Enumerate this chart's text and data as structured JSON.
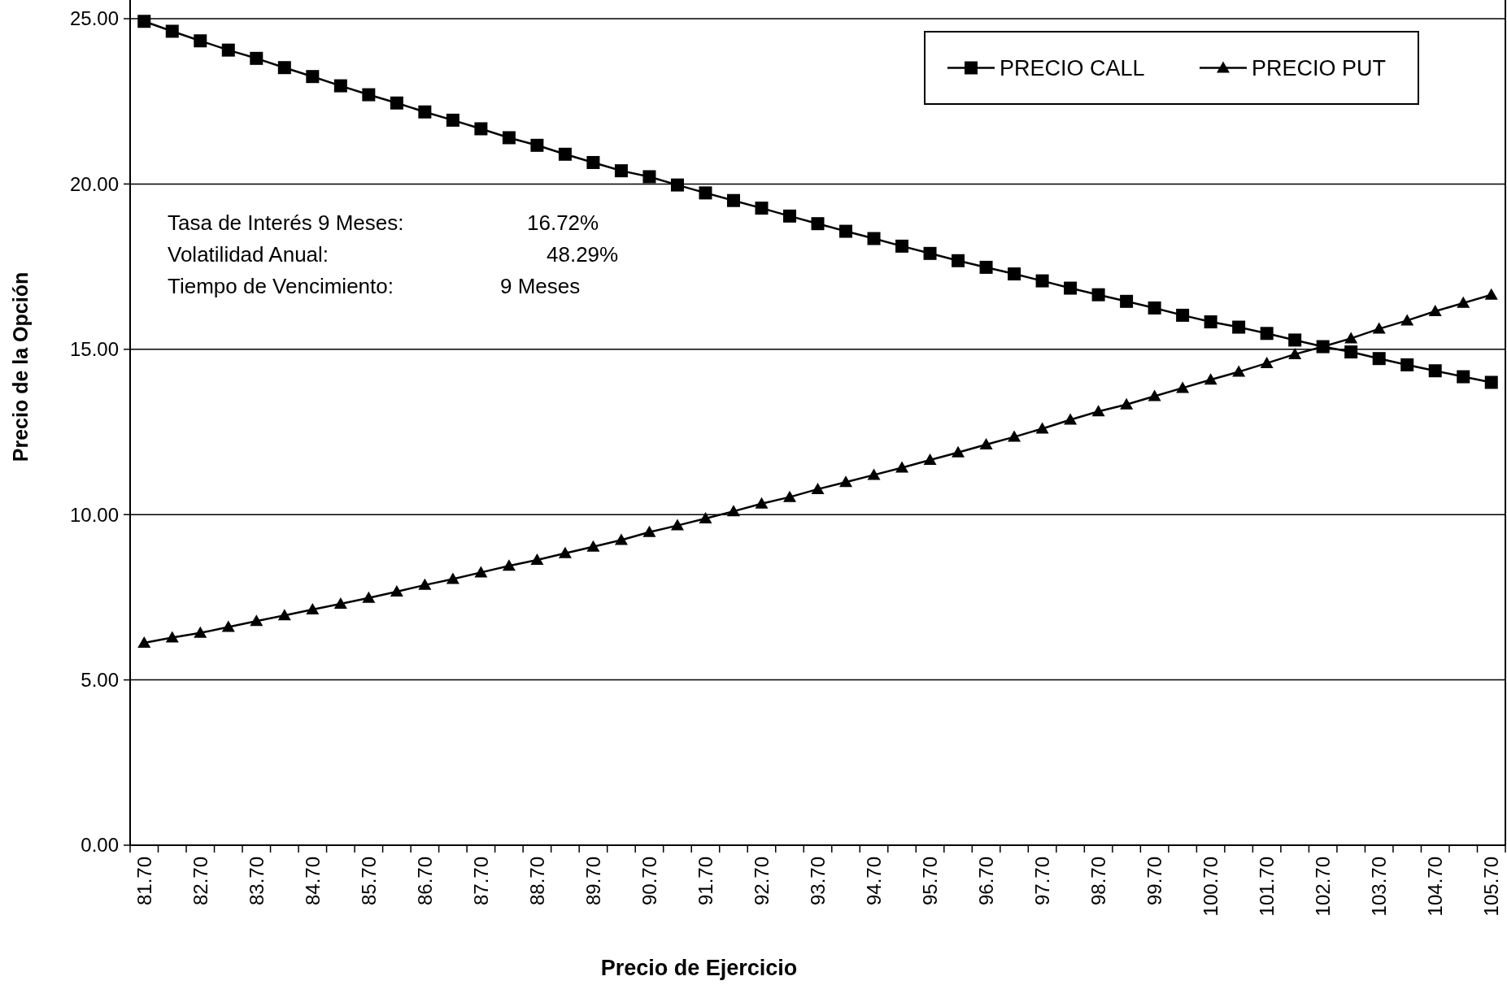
{
  "chart_data": {
    "type": "line",
    "xlabel": "Precio de Ejercicio",
    "ylabel": "Precio de la Opción",
    "categories": [
      "81.70",
      null,
      "82.70",
      null,
      "83.70",
      null,
      "84.70",
      null,
      "85.70",
      null,
      "86.70",
      null,
      "87.70",
      null,
      "88.70",
      null,
      "89.70",
      null,
      "90.70",
      null,
      "91.70",
      null,
      "92.70",
      null,
      "93.70",
      null,
      "94.70",
      null,
      "95.70",
      null,
      "96.70",
      null,
      "97.70",
      null,
      "98.70",
      null,
      "99.70",
      null,
      "100.70",
      null,
      "101.70",
      null,
      "102.70",
      null,
      "103.70",
      null,
      "104.70",
      null,
      "105.70"
    ],
    "series": [
      {
        "name": "PRECIO CALL",
        "color": "#000000",
        "marker": "square",
        "values": [
          24.92,
          24.62,
          24.33,
          24.05,
          23.8,
          23.52,
          23.25,
          22.97,
          22.7,
          22.45,
          22.18,
          21.93,
          21.67,
          21.4,
          21.17,
          20.9,
          20.65,
          20.4,
          20.22,
          19.97,
          19.73,
          19.5,
          19.27,
          19.03,
          18.8,
          18.57,
          18.35,
          18.12,
          17.9,
          17.68,
          17.48,
          17.28,
          17.07,
          16.85,
          16.65,
          16.45,
          16.25,
          16.03,
          15.83,
          15.67,
          15.48,
          15.28,
          15.08,
          14.92,
          14.72,
          14.53,
          14.35,
          14.17,
          14.0
        ]
      },
      {
        "name": "PRECIO PUT",
        "color": "#000000",
        "marker": "triangle",
        "values": [
          6.12,
          6.28,
          6.42,
          6.6,
          6.78,
          6.95,
          7.13,
          7.3,
          7.48,
          7.67,
          7.87,
          8.05,
          8.25,
          8.45,
          8.63,
          8.83,
          9.03,
          9.23,
          9.47,
          9.67,
          9.88,
          10.1,
          10.33,
          10.53,
          10.77,
          10.98,
          11.2,
          11.42,
          11.65,
          11.88,
          12.12,
          12.35,
          12.6,
          12.87,
          13.12,
          13.33,
          13.58,
          13.83,
          14.08,
          14.32,
          14.58,
          14.85,
          15.08,
          15.33,
          15.62,
          15.87,
          16.15,
          16.4,
          16.65
        ]
      }
    ],
    "ylim": [
      0,
      25
    ],
    "yticks": [
      {
        "value": 0,
        "label": "0.00"
      },
      {
        "value": 5,
        "label": "5.00"
      },
      {
        "value": 10,
        "label": "10.00"
      },
      {
        "value": 15,
        "label": "15.00"
      },
      {
        "value": 20,
        "label": "20.00"
      },
      {
        "value": 25,
        "label": "25.00"
      }
    ],
    "grid": "y",
    "legend": "top right",
    "line_style": "solid",
    "annotations": [
      "Tasa de Interés 9 Meses:",
      "16.72%",
      "Volatilidad Anual:",
      "48.29%",
      "Tiempo de Vencimiento:",
      "9 Meses"
    ]
  }
}
